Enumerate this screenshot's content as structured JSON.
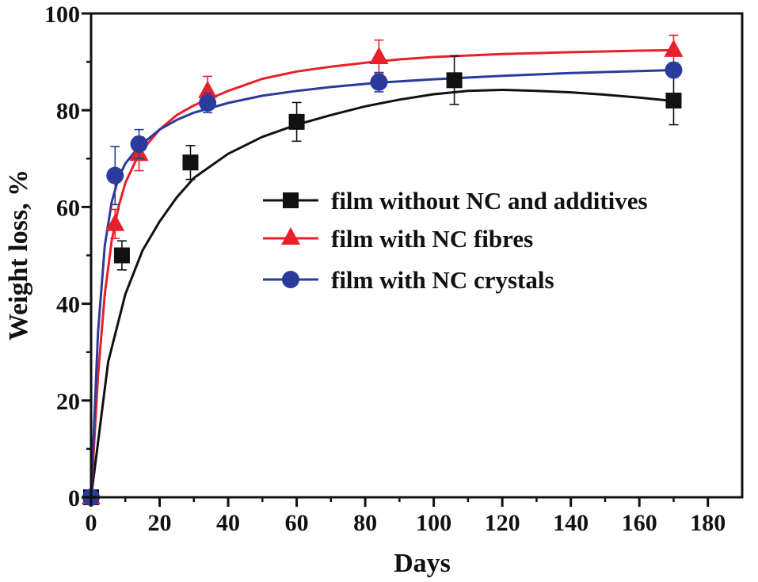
{
  "chart_data": {
    "type": "scatter",
    "title": "",
    "xlabel": "Days",
    "ylabel": "Weight loss, %",
    "xlim": [
      0,
      190
    ],
    "ylim": [
      0,
      100
    ],
    "xticks": [
      0,
      20,
      40,
      60,
      80,
      100,
      120,
      140,
      160,
      180
    ],
    "yticks": [
      0,
      20,
      40,
      60,
      80,
      100
    ],
    "xtick_labels": [
      "0",
      "20",
      "40",
      "60",
      "80",
      "100",
      "120",
      "140",
      "160",
      "180"
    ],
    "ytick_labels": [
      "0",
      "20",
      "40",
      "60",
      "80",
      "100"
    ],
    "legend_position": "center-right",
    "series": [
      {
        "name": "film without NC and additives",
        "color": "#111111",
        "marker": "square",
        "x": [
          0,
          9,
          29,
          60,
          106,
          170
        ],
        "y": [
          0,
          50,
          69.2,
          77.6,
          86.2,
          82
        ],
        "error": [
          0,
          3,
          3.5,
          4,
          5,
          5
        ],
        "fit": [
          [
            0,
            0
          ],
          [
            5,
            28
          ],
          [
            10,
            42
          ],
          [
            15,
            51
          ],
          [
            20,
            57
          ],
          [
            25,
            62
          ],
          [
            30,
            66
          ],
          [
            40,
            71
          ],
          [
            50,
            74.5
          ],
          [
            60,
            77
          ],
          [
            70,
            79
          ],
          [
            80,
            80.8
          ],
          [
            90,
            82.2
          ],
          [
            100,
            83.3
          ],
          [
            110,
            84
          ],
          [
            120,
            84.2
          ],
          [
            130,
            84
          ],
          [
            140,
            83.7
          ],
          [
            150,
            83.2
          ],
          [
            160,
            82.6
          ],
          [
            170,
            81.9
          ]
        ]
      },
      {
        "name": "film with NC fibres",
        "color": "#e8202a",
        "marker": "triangle",
        "x": [
          0,
          7,
          14,
          34,
          84,
          170
        ],
        "y": [
          0,
          56.5,
          71,
          84,
          91,
          92.5
        ],
        "error": [
          0,
          3,
          3.5,
          3,
          3.5,
          3
        ],
        "fit": [
          [
            0,
            0
          ],
          [
            2,
            25
          ],
          [
            4,
            42
          ],
          [
            6,
            53
          ],
          [
            8,
            60
          ],
          [
            10,
            65
          ],
          [
            14,
            71
          ],
          [
            20,
            76
          ],
          [
            25,
            79
          ],
          [
            30,
            81
          ],
          [
            40,
            84
          ],
          [
            50,
            86.5
          ],
          [
            60,
            88
          ],
          [
            70,
            89
          ],
          [
            80,
            89.8
          ],
          [
            90,
            90.5
          ],
          [
            100,
            91
          ],
          [
            120,
            91.6
          ],
          [
            140,
            92
          ],
          [
            160,
            92.3
          ],
          [
            170,
            92.4
          ]
        ]
      },
      {
        "name": "film with NC crystals",
        "color": "#2b3b9c",
        "marker": "circle",
        "x": [
          0,
          7,
          14,
          34,
          84,
          170
        ],
        "y": [
          0,
          66.5,
          73,
          81.5,
          85.8,
          88.3
        ],
        "error": [
          0,
          6,
          3,
          2,
          2,
          1.5
        ],
        "fit": [
          [
            0,
            0
          ],
          [
            2,
            34
          ],
          [
            4,
            52
          ],
          [
            6,
            61
          ],
          [
            8,
            66
          ],
          [
            10,
            69
          ],
          [
            14,
            72.5
          ],
          [
            20,
            76
          ],
          [
            25,
            78
          ],
          [
            30,
            79.5
          ],
          [
            40,
            81.5
          ],
          [
            50,
            83
          ],
          [
            60,
            84
          ],
          [
            70,
            84.8
          ],
          [
            84,
            85.7
          ],
          [
            100,
            86.4
          ],
          [
            120,
            87.1
          ],
          [
            140,
            87.7
          ],
          [
            160,
            88.1
          ],
          [
            170,
            88.3
          ]
        ]
      }
    ]
  }
}
